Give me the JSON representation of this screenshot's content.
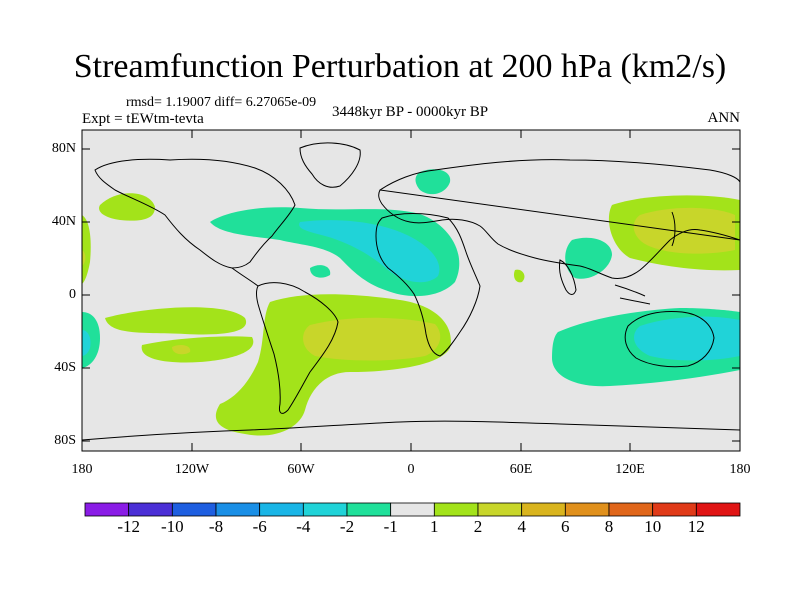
{
  "title": "Streamfunction Perturbation at 200 hPa (km2/s)",
  "stats": "rmsd= 1.19007 diff= 6.27065e-09",
  "expt": "Expt = tEWtm-tevta",
  "period": "3448kyr BP - 0000kyr BP",
  "season": "ANN",
  "lat_ticks": [
    "80N",
    "40N",
    "0",
    "40S",
    "80S"
  ],
  "lon_ticks": [
    "180",
    "120W",
    "60W",
    "0",
    "60E",
    "120E",
    "180"
  ],
  "colorbar": {
    "labels": [
      "-12",
      "-10",
      "-8",
      "-6",
      "-4",
      "-2",
      "-1",
      "1",
      "2",
      "4",
      "6",
      "8",
      "10",
      "12"
    ],
    "colors": [
      "#8a1ce6",
      "#4b2fd6",
      "#1e5ee0",
      "#1a8fe6",
      "#19b5e6",
      "#20d3d8",
      "#20e09a",
      "#e6e6e6",
      "#a3e31a",
      "#c8d62a",
      "#d9b41e",
      "#e0901c",
      "#e0661a",
      "#e03a18",
      "#e01414"
    ]
  },
  "colors": {
    "neutral": "#e6e6e6",
    "coast": "#000000"
  }
}
